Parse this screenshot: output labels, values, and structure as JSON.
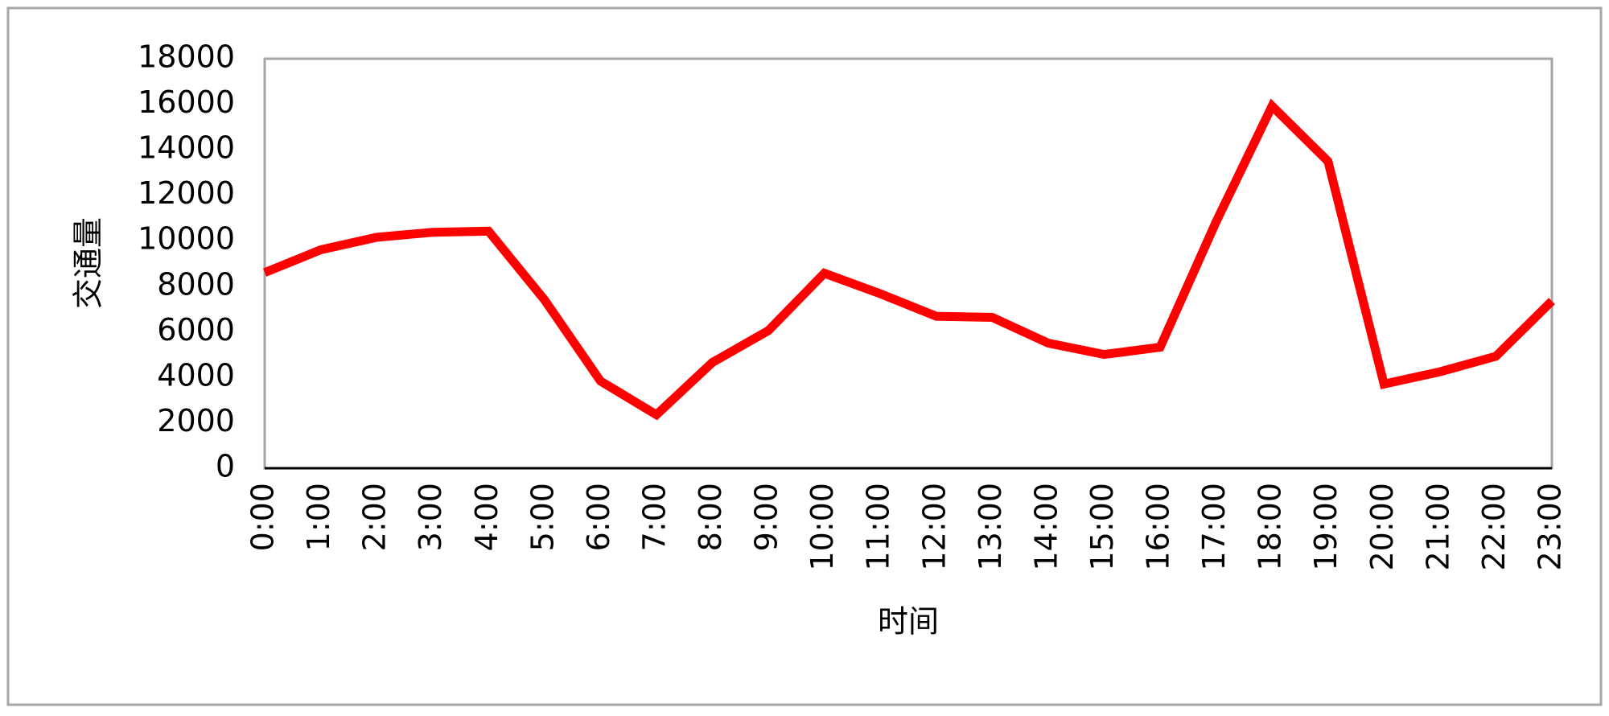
{
  "chart_data": {
    "type": "line",
    "y_label": "交通量",
    "x_label": "时间",
    "categories": [
      "0:00",
      "1:00",
      "2:00",
      "3:00",
      "4:00",
      "5:00",
      "6:00",
      "7:00",
      "8:00",
      "9:00",
      "10:00",
      "11:00",
      "12:00",
      "13:00",
      "14:00",
      "15:00",
      "16:00",
      "17:00",
      "18:00",
      "19:00",
      "20:00",
      "21:00",
      "22:00",
      "23:00"
    ],
    "values": [
      8600,
      9600,
      10150,
      10370,
      10420,
      7400,
      3830,
      2350,
      4650,
      6050,
      8570,
      7670,
      6680,
      6630,
      5500,
      5000,
      5320,
      10830,
      15920,
      13490,
      3700,
      4240,
      4920,
      7350
    ],
    "color": "#ff0000",
    "ylim": [
      0,
      18000
    ],
    "yticks": [
      0,
      2000,
      4000,
      6000,
      8000,
      10000,
      12000,
      14000,
      16000,
      18000
    ],
    "grid": false
  }
}
